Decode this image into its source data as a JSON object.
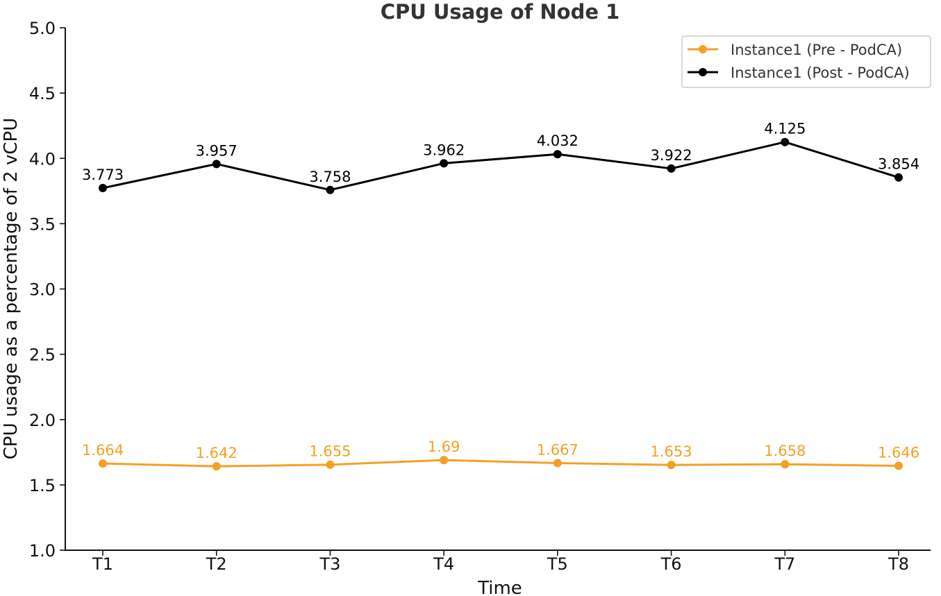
{
  "chart_data": {
    "type": "line",
    "title": "CPU Usage of Node 1",
    "xlabel": "Time",
    "ylabel": "CPU usage as a percentage of 2 vCPU",
    "categories": [
      "T1",
      "T2",
      "T3",
      "T4",
      "T5",
      "T6",
      "T7",
      "T8"
    ],
    "ylim": [
      1.0,
      5.0
    ],
    "yticks": [
      "1.0",
      "1.5",
      "2.0",
      "2.5",
      "3.0",
      "3.5",
      "4.0",
      "4.5",
      "5.0"
    ],
    "grid": false,
    "legend_position": "top-right",
    "series": [
      {
        "name": "Instance1 (Pre - PodCA)",
        "color": "#f5a023",
        "values": [
          1.664,
          1.642,
          1.655,
          1.69,
          1.667,
          1.653,
          1.658,
          1.646
        ],
        "labels": [
          "1.664",
          "1.642",
          "1.655",
          "1.69",
          "1.667",
          "1.653",
          "1.658",
          "1.646"
        ]
      },
      {
        "name": "Instance1 (Post - PodCA)",
        "color": "#000000",
        "values": [
          3.773,
          3.957,
          3.758,
          3.962,
          4.032,
          3.922,
          4.125,
          3.854
        ],
        "labels": [
          "3.773",
          "3.957",
          "3.758",
          "3.962",
          "4.032",
          "3.922",
          "4.125",
          "3.854"
        ]
      }
    ]
  }
}
